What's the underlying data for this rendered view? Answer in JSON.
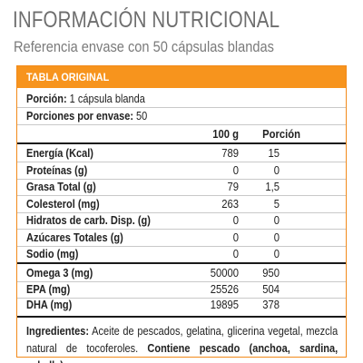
{
  "header": {
    "title": "INFORMACIÓN NUTRICIONAL",
    "subtitle": "Referencia envase con 50 cápsulas blandas"
  },
  "table": {
    "section_label": "TABLA ORIGINAL",
    "serving": {
      "label": "Porción:",
      "value": "1 cápsula blanda"
    },
    "servings_per_container": {
      "label": "Porciones por envase:",
      "value": "50"
    },
    "columns": {
      "per100": "100 g",
      "portion": "Porción"
    },
    "rows": [
      {
        "label": "Energía (Kcal)",
        "per100": "789",
        "portion": "15"
      },
      {
        "label": "Proteínas (g)",
        "per100": "0",
        "portion": "0"
      },
      {
        "label": "Grasa Total (g)",
        "per100": "79",
        "portion": "1,5"
      },
      {
        "label": "Colesterol (mg)",
        "per100": "263",
        "portion": "5"
      },
      {
        "label": "Hidratos de carb. Disp. (g)",
        "per100": "0",
        "portion": "0"
      },
      {
        "label": "Azúcares Totales (g)",
        "per100": "0",
        "portion": "0"
      },
      {
        "label": "Sodio (mg)",
        "per100": "0",
        "portion": "0"
      }
    ],
    "omega_rows": [
      {
        "label": "Omega 3 (mg)",
        "per100": "50000",
        "portion": "950"
      },
      {
        "label": "EPA (mg)",
        "per100": "25526",
        "portion": "504"
      },
      {
        "label": "DHA (mg)",
        "per100": "19895",
        "portion": "378"
      }
    ],
    "ingredients": {
      "label": "Ingredientes:",
      "text": " Aceite de pescados, gelatina, glicerina vegetal, mezcla natural de tocoferoles.",
      "bold_text": " Contiene pescado (anchoa, sardina, caballa)."
    }
  },
  "colors": {
    "accent": "#f7941d",
    "border": "#f28a1a",
    "title": "#6e6e6e"
  }
}
